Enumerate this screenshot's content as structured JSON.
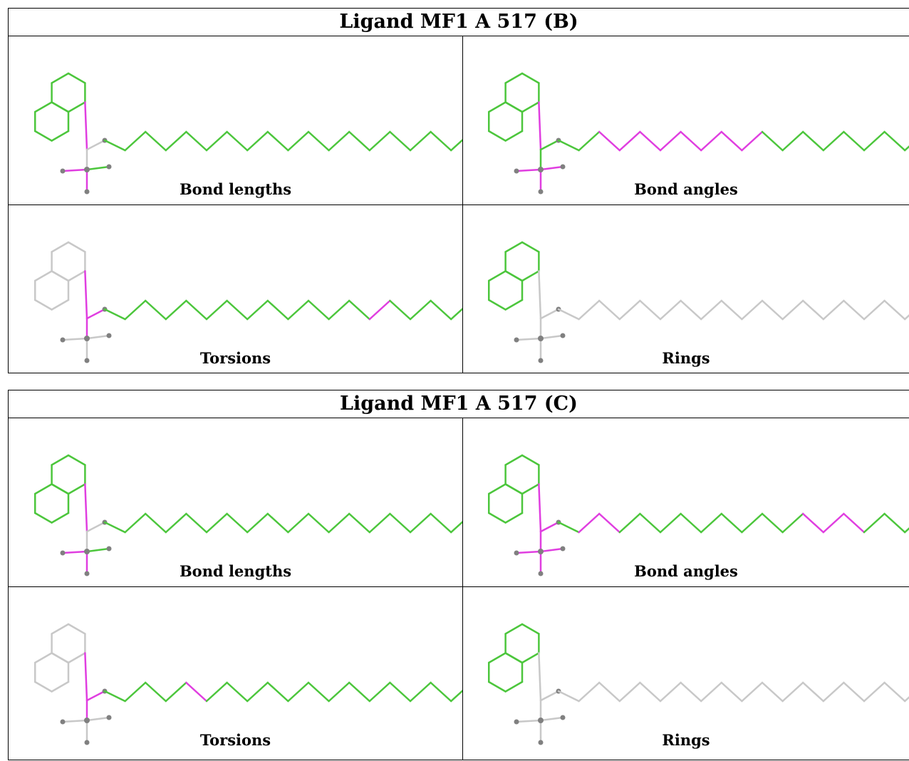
{
  "blocks": [
    {
      "title": "Ligand MF1 A 517 (B)",
      "panels": [
        {
          "caption": "Bond lengths",
          "ring": "green",
          "link": "magenta",
          "center": "grey",
          "methyl": [
            "magenta",
            "green",
            "magenta"
          ],
          "chain": [
            "green",
            "green",
            "green",
            "green",
            "green",
            "green",
            "green",
            "green",
            "green",
            "green",
            "green",
            "green",
            "green",
            "green",
            "green",
            "green",
            "green",
            "green"
          ]
        },
        {
          "caption": "Bond angles",
          "ring": "green",
          "link": "magenta",
          "center": "green",
          "methyl": [
            "magenta",
            "magenta",
            "magenta"
          ],
          "chain": [
            "green",
            "green",
            "magenta",
            "magenta",
            "magenta",
            "magenta",
            "magenta",
            "magenta",
            "magenta",
            "magenta",
            "green",
            "green",
            "green",
            "green",
            "green",
            "green",
            "green",
            "green"
          ]
        },
        {
          "caption": "Torsions",
          "ring": "grey",
          "link": "magenta",
          "center": "magenta",
          "methyl": [
            "grey",
            "grey",
            "grey"
          ],
          "chain": [
            "green",
            "green",
            "green",
            "green",
            "green",
            "green",
            "green",
            "green",
            "green",
            "green",
            "green",
            "green",
            "green",
            "magenta",
            "green",
            "green",
            "green",
            "green"
          ]
        },
        {
          "caption": "Rings",
          "ring": "green",
          "link": "grey",
          "center": "grey",
          "methyl": [
            "grey",
            "grey",
            "grey"
          ],
          "chain": [
            "grey",
            "grey",
            "grey",
            "grey",
            "grey",
            "grey",
            "grey",
            "grey",
            "grey",
            "grey",
            "grey",
            "grey",
            "grey",
            "grey",
            "grey",
            "grey",
            "grey",
            "grey"
          ]
        }
      ]
    },
    {
      "title": "Ligand MF1 A 517 (C)",
      "panels": [
        {
          "caption": "Bond lengths",
          "ring": "green",
          "link": "magenta",
          "center": "grey",
          "methyl": [
            "magenta",
            "green",
            "magenta"
          ],
          "chain": [
            "green",
            "green",
            "green",
            "green",
            "green",
            "green",
            "green",
            "green",
            "green",
            "green",
            "green",
            "green",
            "green",
            "green",
            "green",
            "green",
            "green",
            "green"
          ]
        },
        {
          "caption": "Bond angles",
          "ring": "green",
          "link": "magenta",
          "center": "magenta",
          "methyl": [
            "magenta",
            "magenta",
            "magenta"
          ],
          "chain": [
            "green",
            "magenta",
            "magenta",
            "green",
            "green",
            "green",
            "green",
            "green",
            "green",
            "green",
            "green",
            "green",
            "magenta",
            "magenta",
            "magenta",
            "green",
            "green",
            "green"
          ]
        },
        {
          "caption": "Torsions",
          "ring": "grey",
          "link": "magenta",
          "center": "magenta",
          "methyl": [
            "grey",
            "grey",
            "grey"
          ],
          "chain": [
            "green",
            "green",
            "green",
            "green",
            "magenta",
            "green",
            "green",
            "green",
            "green",
            "green",
            "green",
            "green",
            "green",
            "green",
            "green",
            "green",
            "green",
            "green"
          ]
        },
        {
          "caption": "Rings",
          "ring": "green",
          "link": "grey",
          "center": "grey",
          "methyl": [
            "grey",
            "grey",
            "grey"
          ],
          "chain": [
            "grey",
            "grey",
            "grey",
            "grey",
            "grey",
            "grey",
            "grey",
            "grey",
            "grey",
            "grey",
            "grey",
            "grey",
            "grey",
            "grey",
            "grey",
            "grey",
            "grey",
            "grey"
          ]
        }
      ]
    }
  ],
  "colors": {
    "green": "#4cc63c",
    "magenta": "#e03ee0",
    "grey": "#c8c8c8",
    "atom": "#808080",
    "border": "#000000"
  }
}
